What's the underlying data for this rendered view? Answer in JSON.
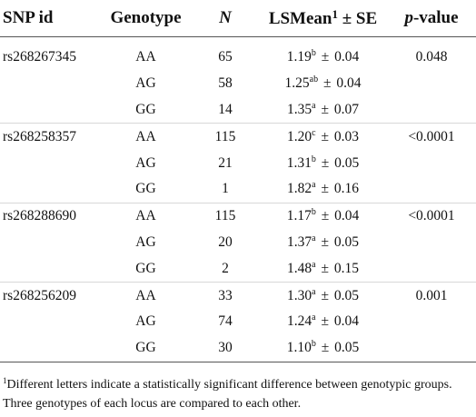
{
  "header": {
    "snp_id": "SNP id",
    "genotype": "Genotype",
    "n": "N",
    "lsmean": "LSMean",
    "lsmean_sup": "1",
    "lsmean_suffix": " ± SE",
    "p_italic": "p",
    "p_suffix": "-value"
  },
  "rows": [
    {
      "snp": "rs268267345",
      "genotype": "AA",
      "n": "65",
      "mean": "1.19",
      "sup": "b",
      "se": "0.04",
      "p": "0.048"
    },
    {
      "snp": "",
      "genotype": "AG",
      "n": "58",
      "mean": "1.25",
      "sup": "ab",
      "se": "0.04",
      "p": ""
    },
    {
      "snp": "",
      "genotype": "GG",
      "n": "14",
      "mean": "1.35",
      "sup": "a",
      "se": "0.07",
      "p": ""
    },
    {
      "snp": "rs268258357",
      "genotype": "AA",
      "n": "115",
      "mean": "1.20",
      "sup": "c",
      "se": "0.03",
      "p": "<0.0001"
    },
    {
      "snp": "",
      "genotype": "AG",
      "n": "21",
      "mean": "1.31",
      "sup": "b",
      "se": "0.05",
      "p": ""
    },
    {
      "snp": "",
      "genotype": "GG",
      "n": "1",
      "mean": "1.82",
      "sup": "a",
      "se": "0.16",
      "p": ""
    },
    {
      "snp": "rs268288690",
      "genotype": "AA",
      "n": "115",
      "mean": "1.17",
      "sup": "b",
      "se": "0.04",
      "p": "<0.0001"
    },
    {
      "snp": "",
      "genotype": "AG",
      "n": "20",
      "mean": "1.37",
      "sup": "a",
      "se": "0.05",
      "p": ""
    },
    {
      "snp": "",
      "genotype": "GG",
      "n": "2",
      "mean": "1.48",
      "sup": "a",
      "se": "0.15",
      "p": ""
    },
    {
      "snp": "rs268256209",
      "genotype": "AA",
      "n": "33",
      "mean": "1.30",
      "sup": "a",
      "se": "0.05",
      "p": "0.001"
    },
    {
      "snp": "",
      "genotype": "AG",
      "n": "74",
      "mean": "1.24",
      "sup": "a",
      "se": "0.04",
      "p": ""
    },
    {
      "snp": "",
      "genotype": "GG",
      "n": "30",
      "mean": "1.10",
      "sup": "b",
      "se": "0.05",
      "p": ""
    }
  ],
  "pm_symbol": "±",
  "footnote": {
    "marker": "1",
    "text": "Different letters indicate a statistically significant difference between genotypic groups. Three genotypes of each locus are compared to each other."
  }
}
